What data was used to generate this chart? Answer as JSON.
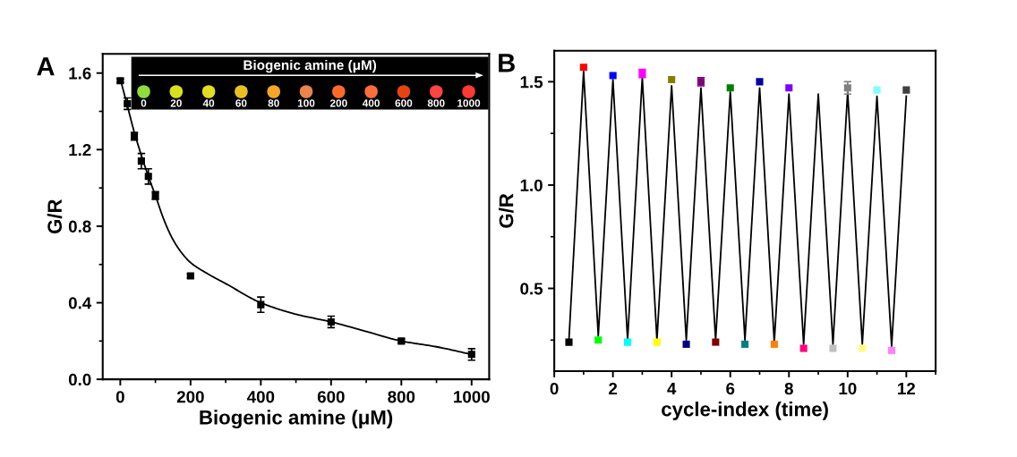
{
  "chart_data": [
    {
      "type": "scatter",
      "title": "A",
      "xlabel": "Biogenic amine (μM)",
      "ylabel": "G/R",
      "annotations": [
        "Biogenic amine (μM)",
        "0",
        "20",
        "40",
        "60",
        "80",
        "100",
        "200",
        "400",
        "600",
        "800",
        "1000"
      ],
      "marker": "square",
      "series": [
        {
          "type": "line",
          "color": "#000000",
          "marker": "none",
          "x": [
            0,
            20,
            40,
            60,
            80,
            100,
            125,
            150,
            175,
            200,
            250,
            300,
            400,
            500,
            600,
            700,
            800,
            900,
            1000
          ],
          "values": [
            1.57,
            1.43,
            1.29,
            1.17,
            1.06,
            0.96,
            0.83,
            0.73,
            0.66,
            0.61,
            0.55,
            0.5,
            0.4,
            0.34,
            0.3,
            0.25,
            0.2,
            0.17,
            0.13
          ]
        },
        {
          "color": "#000000",
          "x": [
            0,
            20,
            40,
            60,
            80,
            100,
            200,
            400,
            600,
            800,
            1000
          ],
          "values": [
            1.56,
            1.44,
            1.27,
            1.14,
            1.06,
            0.96,
            0.54,
            0.39,
            0.3,
            0.2,
            0.13
          ],
          "errors": [
            0.01,
            0.03,
            0.02,
            0.04,
            0.04,
            0.02,
            0.01,
            0.04,
            0.03,
            0.01,
            0.03
          ]
        }
      ],
      "xlim": [
        -50,
        1050
      ],
      "xticks": [
        0,
        200,
        400,
        600,
        800,
        1000,
        {
          "value": 100,
          "label": null
        },
        {
          "value": 300,
          "label": null
        },
        {
          "value": 500,
          "label": null
        },
        {
          "value": 700,
          "label": null
        },
        {
          "value": 900,
          "label": null
        }
      ],
      "ylim": [
        0,
        1.7
      ],
      "yticks": [
        {
          "value": 0,
          "label": "0.0"
        },
        0.4,
        0.8,
        1.2,
        1.6,
        {
          "value": 0.2,
          "label": null
        },
        {
          "value": 0.6,
          "label": null
        },
        {
          "value": 1.0,
          "label": null
        },
        {
          "value": 1.4,
          "label": null
        }
      ]
    },
    {
      "type": "line",
      "title": "B",
      "xlabel": "cycle-index (time)",
      "ylabel": "G/R",
      "marker": "square",
      "series": [
        {
          "color": "#000000",
          "marker": "none",
          "x": [
            0.5,
            1,
            1.5,
            2,
            2.5,
            3,
            3.5,
            4,
            4.5,
            5,
            5.5,
            6,
            6.5,
            7,
            7.5,
            8,
            8.5,
            9,
            9.5,
            10,
            10.5,
            11,
            11.5,
            12
          ],
          "values": [
            0.25,
            1.55,
            0.27,
            1.51,
            0.25,
            1.52,
            0.25,
            1.48,
            0.25,
            1.47,
            0.25,
            1.45,
            0.25,
            1.47,
            0.24,
            1.44,
            0.23,
            1.44,
            0.23,
            1.45,
            0.23,
            1.43,
            0.22,
            1.43
          ]
        },
        {
          "type": "scatter",
          "x": [
            0.5,
            1,
            1.5,
            2,
            2.5,
            3,
            3.5,
            4,
            4.5,
            5,
            5.5,
            6,
            6.5,
            7,
            7.5,
            8,
            8.5,
            9.5,
            10,
            10.5,
            11,
            11.5,
            12
          ],
          "values": [
            0.24,
            1.57,
            0.25,
            1.53,
            0.24,
            1.54,
            0.24,
            1.51,
            0.23,
            1.5,
            0.24,
            1.47,
            0.23,
            1.5,
            0.23,
            1.47,
            0.21,
            0.21,
            1.47,
            0.21,
            1.46,
            0.2,
            1.46
          ],
          "colors": [
            "#000000",
            "#ff0000",
            "#00ff00",
            "#0000ff",
            "#00ffff",
            "#ff00ff",
            "#ffff00",
            "#808000",
            "#000080",
            "#800080",
            "#800000",
            "#008000",
            "#008080",
            "#0000a0",
            "#ff8000",
            "#8000ff",
            "#ff0080",
            "#c0c0c0",
            "#808080",
            "#ffff80",
            "#80ffff",
            "#ff80ff",
            "#404040"
          ],
          "errors": [
            null,
            null,
            null,
            null,
            null,
            0.02,
            null,
            null,
            null,
            0.02,
            null,
            null,
            null,
            null,
            null,
            null,
            null,
            null,
            0.03,
            null,
            null,
            null,
            null
          ]
        }
      ],
      "xlim": [
        0,
        13
      ],
      "xticks": [
        0,
        2,
        4,
        6,
        8,
        10,
        12,
        {
          "value": 1,
          "label": null
        },
        {
          "value": 3,
          "label": null
        },
        {
          "value": 5,
          "label": null
        },
        {
          "value": 7,
          "label": null
        },
        {
          "value": 9,
          "label": null
        },
        {
          "value": 11,
          "label": null
        },
        {
          "value": 13,
          "label": null
        }
      ],
      "ylim": [
        0.1,
        1.65
      ],
      "yticks": [
        0.5,
        {
          "value": 1,
          "label": "1.0"
        },
        1.5,
        {
          "value": 0.25,
          "label": null
        },
        {
          "value": 0.75,
          "label": null
        },
        {
          "value": 1.25,
          "label": null
        }
      ]
    }
  ]
}
